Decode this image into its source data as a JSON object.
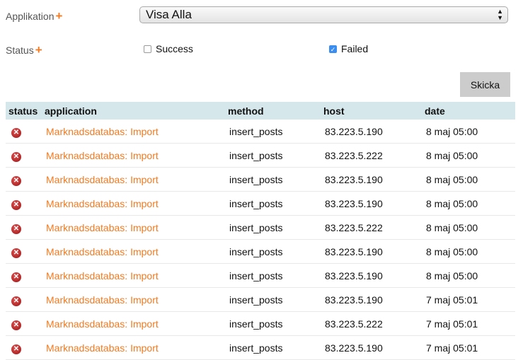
{
  "colors": {
    "accent": "#f47a20",
    "header_bg": "#d5e7eb",
    "error": "#b52020"
  },
  "filters": {
    "application_label": "Applikation",
    "status_label": "Status",
    "plus_icon": "+",
    "application_select": "Visa Alla",
    "success_label": "Success",
    "success_checked": false,
    "failed_label": "Failed",
    "failed_checked": true,
    "submit_label": "Skicka"
  },
  "table": {
    "columns": [
      "status",
      "application",
      "method",
      "host",
      "date"
    ],
    "rows": [
      {
        "status": "failed",
        "application": "Marknadsdatabas: Import",
        "method": "insert_posts",
        "host": "83.223.5.190",
        "date": "8 maj 05:00"
      },
      {
        "status": "failed",
        "application": "Marknadsdatabas: Import",
        "method": "insert_posts",
        "host": "83.223.5.222",
        "date": "8 maj 05:00"
      },
      {
        "status": "failed",
        "application": "Marknadsdatabas: Import",
        "method": "insert_posts",
        "host": "83.223.5.190",
        "date": "8 maj 05:00"
      },
      {
        "status": "failed",
        "application": "Marknadsdatabas: Import",
        "method": "insert_posts",
        "host": "83.223.5.190",
        "date": "8 maj 05:00"
      },
      {
        "status": "failed",
        "application": "Marknadsdatabas: Import",
        "method": "insert_posts",
        "host": "83.223.5.222",
        "date": "8 maj 05:00"
      },
      {
        "status": "failed",
        "application": "Marknadsdatabas: Import",
        "method": "insert_posts",
        "host": "83.223.5.190",
        "date": "8 maj 05:00"
      },
      {
        "status": "failed",
        "application": "Marknadsdatabas: Import",
        "method": "insert_posts",
        "host": "83.223.5.190",
        "date": "8 maj 05:00"
      },
      {
        "status": "failed",
        "application": "Marknadsdatabas: Import",
        "method": "insert_posts",
        "host": "83.223.5.190",
        "date": "7 maj 05:01"
      },
      {
        "status": "failed",
        "application": "Marknadsdatabas: Import",
        "method": "insert_posts",
        "host": "83.223.5.222",
        "date": "7 maj 05:01"
      },
      {
        "status": "failed",
        "application": "Marknadsdatabas: Import",
        "method": "insert_posts",
        "host": "83.223.5.190",
        "date": "7 maj 05:01"
      }
    ]
  }
}
